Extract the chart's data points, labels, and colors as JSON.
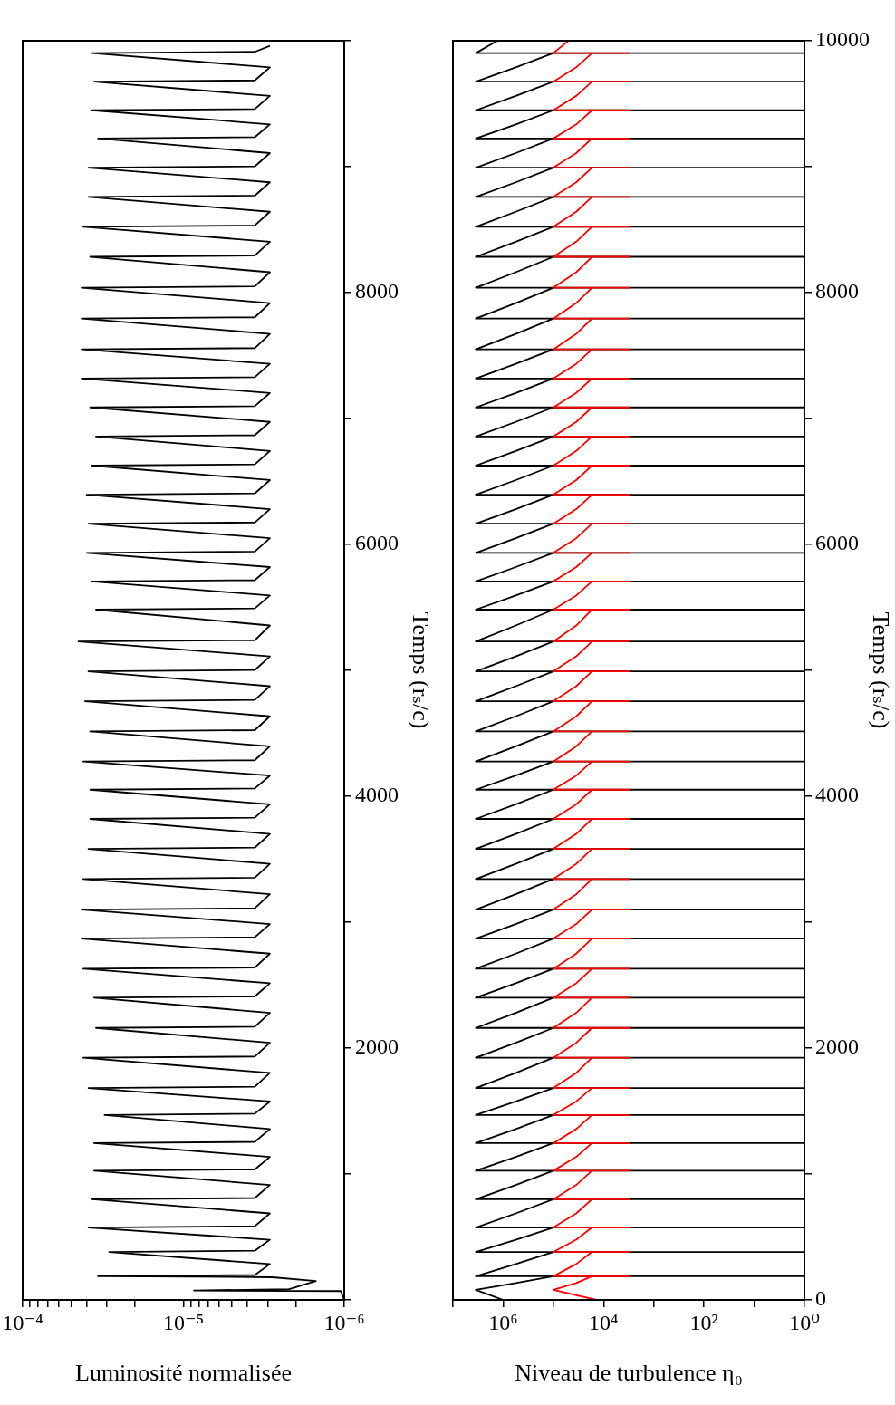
{
  "chart_data": [
    {
      "type": "line",
      "orientation": "horizontal",
      "ylabel": "Temps (rₛ/c)",
      "xlabel": "Luminosité normalisée",
      "log": "x",
      "marker": "none",
      "ylim": [
        0,
        10000
      ],
      "yticks": [
        {
          "value": 0,
          "label": null
        },
        {
          "value": 1000,
          "label": null
        },
        2000,
        {
          "value": 3000,
          "label": null
        },
        4000,
        {
          "value": 5000,
          "label": null
        },
        6000,
        {
          "value": 7000,
          "label": null
        },
        8000,
        {
          "value": 9000,
          "label": null
        },
        {
          "value": 10000,
          "label": null
        }
      ],
      "xlim": [
        0.0001,
        1e-06
      ],
      "xticks": [
        {
          "value": 1e-06,
          "label": "10⁻⁶"
        },
        {
          "value": 2e-06,
          "label": null
        },
        {
          "value": 3e-06,
          "label": null
        },
        {
          "value": 4e-06,
          "label": null
        },
        {
          "value": 5e-06,
          "label": null
        },
        {
          "value": 6e-06,
          "label": null
        },
        {
          "value": 7e-06,
          "label": null
        },
        {
          "value": 8e-06,
          "label": null
        },
        {
          "value": 9e-06,
          "label": null
        },
        {
          "value": 1e-05,
          "label": "10⁻⁵"
        },
        {
          "value": 2e-05,
          "label": null
        },
        {
          "value": 3e-05,
          "label": null
        },
        {
          "value": 4e-05,
          "label": null
        },
        {
          "value": 5e-05,
          "label": null
        },
        {
          "value": 6e-05,
          "label": null
        },
        {
          "value": 7e-05,
          "label": null
        },
        {
          "value": 8e-05,
          "label": null
        },
        {
          "value": 9e-05,
          "label": null
        },
        {
          "value": 0.0001,
          "label": "10⁻⁴"
        }
      ],
      "x": [
        0,
        70,
        75,
        85,
        150,
        180,
        188,
        198,
        285,
        381,
        391,
        478,
        575,
        585,
        687,
        799,
        809,
        913,
        1026,
        1036,
        1136,
        1245,
        1255,
        1357,
        1469,
        1479,
        1576,
        1683,
        1693,
        1803,
        1923,
        1933,
        2042,
        2160,
        2170,
        2280,
        2400,
        2410,
        2515,
        2630,
        2640,
        2750,
        2870,
        2880,
        2985,
        3100,
        3110,
        3222,
        3343,
        3353,
        3463,
        3582,
        3592,
        3701,
        3820,
        3830,
        3936,
        4052,
        4062,
        4164,
        4276,
        4286,
        4396,
        4515,
        4525,
        4635,
        4755,
        4765,
        4874,
        4992,
        5002,
        5111,
        5229,
        5239,
        5356,
        5482,
        5492,
        5594,
        5706,
        5716,
        5820,
        5933,
        5943,
        6049,
        6164,
        6174,
        6280,
        6395,
        6405,
        6511,
        6626,
        6636,
        6742,
        6857,
        6867,
        6973,
        7088,
        7098,
        7203,
        7318,
        7328,
        7434,
        7549,
        7559,
        7672,
        7794,
        7804,
        7917,
        8039,
        8049,
        8162,
        8284,
        8294,
        8404,
        8523,
        8533,
        8642,
        8760,
        8770,
        8876,
        8992,
        9002,
        9108,
        9224,
        9234,
        9336,
        9448,
        9458,
        9562,
        9675,
        9685,
        9789,
        9902,
        9912,
        9960
      ],
      "series": [
        {
          "color": "#000000",
          "values": [
            1e-06,
            1.05e-06,
            8.6e-06,
            2.2e-06,
            1.5e-06,
            2.8e-06,
            3.4e-05,
            3.6e-06,
            2.9e-06,
            2.9e-05,
            3.6e-06,
            2.9e-06,
            3.9e-05,
            3.6e-06,
            2.9e-06,
            3.7e-05,
            3.6e-06,
            2.9e-06,
            3.6e-05,
            3.6e-06,
            2.9e-06,
            3.6e-05,
            3.6e-06,
            2.9e-06,
            3.1e-05,
            3.6e-06,
            2.9e-06,
            3.9e-05,
            3.6e-06,
            2.9e-06,
            4.2e-05,
            3.6e-06,
            2.9e-06,
            3.5e-05,
            3.6e-06,
            2.9e-06,
            3.6e-05,
            3.6e-06,
            2.9e-06,
            4.2e-05,
            3.6e-06,
            2.9e-06,
            4.3e-05,
            3.6e-06,
            2.9e-06,
            4.3e-05,
            3.6e-06,
            2.9e-06,
            4.2e-05,
            3.6e-06,
            2.9e-06,
            3.9e-05,
            3.6e-06,
            2.9e-06,
            3.8e-05,
            3.6e-06,
            2.9e-06,
            3.8e-05,
            3.6e-06,
            2.9e-06,
            4.2e-05,
            3.6e-06,
            2.9e-06,
            3.8e-05,
            3.6e-06,
            2.9e-06,
            4.1e-05,
            3.6e-06,
            2.9e-06,
            3.9e-05,
            3.6e-06,
            2.9e-06,
            4.5e-05,
            3.6e-06,
            2.9e-06,
            3.5e-05,
            3.6e-06,
            2.9e-06,
            3.7e-05,
            3.6e-06,
            2.9e-06,
            4e-05,
            3.6e-06,
            2.9e-06,
            3.9e-05,
            3.6e-06,
            2.9e-06,
            4e-05,
            3.6e-06,
            2.9e-06,
            3.7e-05,
            3.6e-06,
            2.9e-06,
            3.5e-05,
            3.6e-06,
            2.9e-06,
            3.8e-05,
            3.6e-06,
            2.9e-06,
            4.3e-05,
            3.6e-06,
            2.9e-06,
            4.3e-05,
            3.6e-06,
            2.9e-06,
            4.3e-05,
            3.6e-06,
            2.9e-06,
            4.3e-05,
            3.6e-06,
            2.9e-06,
            3.8e-05,
            3.6e-06,
            2.9e-06,
            4.2e-05,
            3.6e-06,
            2.9e-06,
            3.9e-05,
            3.6e-06,
            2.9e-06,
            3.9e-05,
            3.6e-06,
            2.9e-06,
            3.4e-05,
            3.6e-06,
            2.9e-06,
            3.7e-05,
            3.6e-06,
            2.9e-06,
            3.6e-05,
            3.6e-06,
            2.9e-06,
            3.7e-05,
            3.6e-06,
            2.9e-06
          ]
        }
      ]
    },
    {
      "type": "line",
      "orientation": "horizontal",
      "ylabel": "Temps (rₛ/c)",
      "xlabel": "Niveau de turbulence η₀",
      "log": "x",
      "marker": "none",
      "ylim": [
        0,
        10000
      ],
      "yticks": [
        0,
        {
          "value": 1000,
          "label": null
        },
        2000,
        {
          "value": 3000,
          "label": null
        },
        4000,
        {
          "value": 5000,
          "label": null
        },
        6000,
        {
          "value": 7000,
          "label": null
        },
        8000,
        {
          "value": 9000,
          "label": null
        },
        10000
      ],
      "xlim": [
        10000000.0,
        1
      ],
      "xticks": [
        {
          "value": 1,
          "label": "10⁰"
        },
        {
          "value": 10,
          "label": null
        },
        {
          "value": 100,
          "label": "10²"
        },
        {
          "value": 1000,
          "label": null
        },
        {
          "value": 10000,
          "label": "10⁴"
        },
        {
          "value": 100000,
          "label": null
        },
        {
          "value": 1000000,
          "label": "10⁶"
        },
        {
          "value": 10000000,
          "label": null
        }
      ],
      "x": [
        0,
        80,
        134,
        188,
        188,
        188,
        285,
        381,
        381,
        381,
        478,
        575,
        575,
        575,
        687,
        799,
        799,
        799,
        913,
        1026,
        1026,
        1026,
        1136,
        1245,
        1245,
        1245,
        1357,
        1469,
        1469,
        1469,
        1576,
        1683,
        1683,
        1683,
        1803,
        1923,
        1923,
        1923,
        2042,
        2160,
        2160,
        2160,
        2280,
        2400,
        2400,
        2400,
        2515,
        2630,
        2630,
        2630,
        2750,
        2870,
        2870,
        2870,
        2985,
        3100,
        3100,
        3100,
        3222,
        3343,
        3343,
        3343,
        3463,
        3582,
        3582,
        3582,
        3701,
        3820,
        3820,
        3820,
        3936,
        4052,
        4052,
        4052,
        4164,
        4276,
        4276,
        4276,
        4396,
        4515,
        4515,
        4515,
        4635,
        4755,
        4755,
        4755,
        4874,
        4992,
        4992,
        4992,
        5111,
        5229,
        5229,
        5229,
        5356,
        5482,
        5482,
        5482,
        5594,
        5706,
        5706,
        5706,
        5820,
        5933,
        5933,
        5933,
        6049,
        6164,
        6164,
        6164,
        6280,
        6395,
        6395,
        6395,
        6511,
        6626,
        6626,
        6626,
        6742,
        6857,
        6857,
        6857,
        6973,
        7088,
        7088,
        7088,
        7203,
        7318,
        7318,
        7318,
        7434,
        7549,
        7549,
        7549,
        7672,
        7794,
        7794,
        7794,
        7917,
        8039,
        8039,
        8039,
        8162,
        8284,
        8284,
        8284,
        8404,
        8523,
        8523,
        8523,
        8642,
        8760,
        8760,
        8760,
        8876,
        8992,
        8992,
        8992,
        9108,
        9224,
        9224,
        9224,
        9336,
        9448,
        9448,
        9448,
        9562,
        9675,
        9675,
        9675,
        9789,
        9902,
        9902,
        9902,
        10000
      ],
      "series": [
        {
          "color": "#000000",
          "values": [
            1000000.0,
            3500000.0,
            560000.0,
            100000.0,
            1,
            3500000.0,
            560000.0,
            100000.0,
            1,
            3500000.0,
            560000.0,
            100000.0,
            1,
            3500000.0,
            560000.0,
            100000.0,
            1,
            3500000.0,
            560000.0,
            100000.0,
            1,
            3500000.0,
            560000.0,
            100000.0,
            1,
            3500000.0,
            560000.0,
            100000.0,
            1,
            3500000.0,
            560000.0,
            100000.0,
            1,
            3500000.0,
            560000.0,
            100000.0,
            1,
            3500000.0,
            560000.0,
            100000.0,
            1,
            3500000.0,
            560000.0,
            100000.0,
            1,
            3500000.0,
            560000.0,
            100000.0,
            1,
            3500000.0,
            560000.0,
            100000.0,
            1,
            3500000.0,
            560000.0,
            100000.0,
            1,
            3500000.0,
            560000.0,
            100000.0,
            1,
            3500000.0,
            560000.0,
            100000.0,
            1,
            3500000.0,
            560000.0,
            100000.0,
            1,
            3500000.0,
            560000.0,
            100000.0,
            1,
            3500000.0,
            560000.0,
            100000.0,
            1,
            3500000.0,
            560000.0,
            100000.0,
            1,
            3500000.0,
            560000.0,
            100000.0,
            1,
            3500000.0,
            560000.0,
            100000.0,
            1,
            3500000.0,
            560000.0,
            100000.0,
            1,
            3500000.0,
            560000.0,
            100000.0,
            1,
            3500000.0,
            560000.0,
            100000.0,
            1,
            3500000.0,
            560000.0,
            100000.0,
            1,
            3500000.0,
            560000.0,
            100000.0,
            1,
            3500000.0,
            560000.0,
            100000.0,
            1,
            3500000.0,
            560000.0,
            100000.0,
            1,
            3500000.0,
            560000.0,
            100000.0,
            1,
            3500000.0,
            560000.0,
            100000.0,
            1,
            3500000.0,
            560000.0,
            100000.0,
            1,
            3500000.0,
            560000.0,
            100000.0,
            1,
            3500000.0,
            560000.0,
            100000.0,
            1,
            3500000.0,
            560000.0,
            100000.0,
            1,
            3500000.0,
            560000.0,
            100000.0,
            1,
            3500000.0,
            560000.0,
            100000.0,
            1,
            3500000.0,
            560000.0,
            100000.0,
            1,
            3500000.0,
            560000.0,
            100000.0,
            1,
            3500000.0,
            560000.0,
            100000.0,
            1,
            3500000.0,
            560000.0,
            100000.0,
            1,
            3500000.0,
            560000.0,
            100000.0,
            1,
            3500000.0,
            560000.0,
            100000.0,
            1,
            3500000.0,
            1300000.0
          ]
        },
        {
          "color": "#ff0000",
          "values": [
            14000.0,
            100000.0,
            35000.0,
            17000.0,
            3000.0,
            100000.0,
            35000.0,
            17000.0,
            3000.0,
            100000.0,
            35000.0,
            17000.0,
            3000.0,
            100000.0,
            35000.0,
            17000.0,
            3000.0,
            100000.0,
            35000.0,
            17000.0,
            3000.0,
            100000.0,
            35000.0,
            17000.0,
            3000.0,
            100000.0,
            35000.0,
            17000.0,
            3000.0,
            100000.0,
            35000.0,
            17000.0,
            3000.0,
            100000.0,
            35000.0,
            17000.0,
            3000.0,
            100000.0,
            35000.0,
            17000.0,
            3000.0,
            100000.0,
            35000.0,
            17000.0,
            3000.0,
            100000.0,
            35000.0,
            17000.0,
            3000.0,
            100000.0,
            35000.0,
            17000.0,
            3000.0,
            100000.0,
            35000.0,
            17000.0,
            3000.0,
            100000.0,
            35000.0,
            17000.0,
            3000.0,
            100000.0,
            35000.0,
            17000.0,
            3000.0,
            100000.0,
            35000.0,
            17000.0,
            3000.0,
            100000.0,
            35000.0,
            17000.0,
            3000.0,
            100000.0,
            35000.0,
            17000.0,
            3000.0,
            100000.0,
            35000.0,
            17000.0,
            3000.0,
            100000.0,
            35000.0,
            17000.0,
            3000.0,
            100000.0,
            35000.0,
            17000.0,
            3000.0,
            100000.0,
            35000.0,
            17000.0,
            3000.0,
            100000.0,
            35000.0,
            17000.0,
            3000.0,
            100000.0,
            35000.0,
            17000.0,
            3000.0,
            100000.0,
            35000.0,
            17000.0,
            3000.0,
            100000.0,
            35000.0,
            17000.0,
            3000.0,
            100000.0,
            35000.0,
            17000.0,
            3000.0,
            100000.0,
            35000.0,
            17000.0,
            3000.0,
            100000.0,
            35000.0,
            17000.0,
            3000.0,
            100000.0,
            35000.0,
            17000.0,
            3000.0,
            100000.0,
            35000.0,
            17000.0,
            3000.0,
            100000.0,
            35000.0,
            17000.0,
            3000.0,
            100000.0,
            35000.0,
            17000.0,
            3000.0,
            100000.0,
            35000.0,
            17000.0,
            3000.0,
            100000.0,
            35000.0,
            17000.0,
            3000.0,
            100000.0,
            35000.0,
            17000.0,
            3000.0,
            100000.0,
            35000.0,
            17000.0,
            3000.0,
            100000.0,
            35000.0,
            17000.0,
            3000.0,
            100000.0,
            35000.0,
            17000.0,
            3000.0,
            100000.0,
            35000.0,
            17000.0,
            3000.0,
            100000.0,
            35000.0,
            17000.0,
            3000.0,
            100000.0,
            35000.0,
            17000.0,
            3000.0,
            100000.0,
            50000.0
          ]
        }
      ]
    }
  ]
}
